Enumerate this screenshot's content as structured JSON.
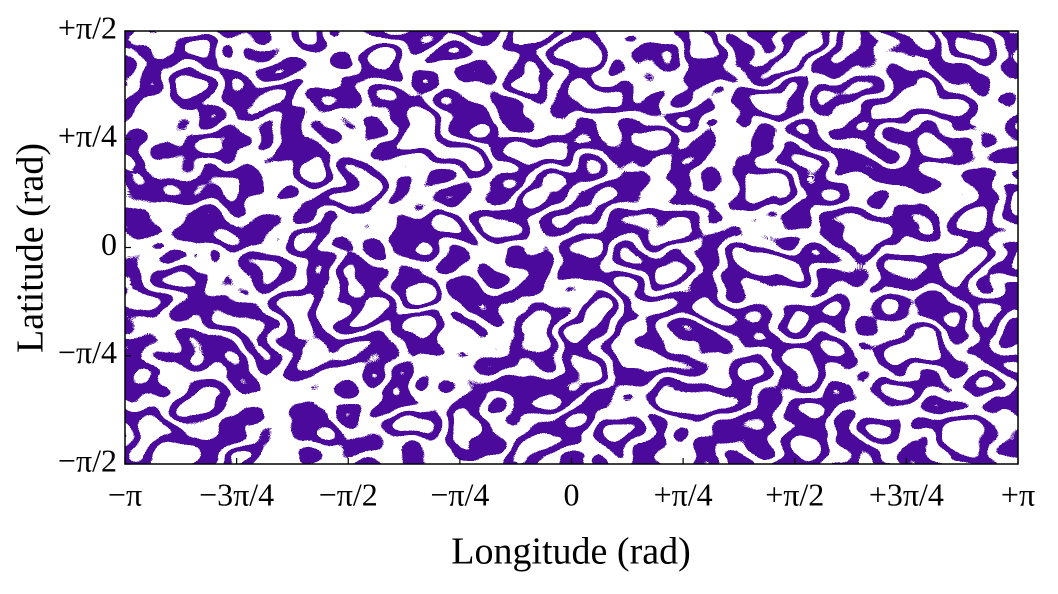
{
  "chart_data": {
    "type": "field",
    "x_label": "Longitude (rad)",
    "y_label": "Latitude (rad)",
    "color": "#4b0a9c",
    "xlim": [
      -3.14159,
      3.14159
    ],
    "ylim": [
      -1.5708,
      1.5708
    ],
    "xticks": [
      {
        "value": -3.14159,
        "label": "−π"
      },
      {
        "value": -2.35619,
        "label": "−3π/4"
      },
      {
        "value": -1.5708,
        "label": "−π/2"
      },
      {
        "value": -0.7854,
        "label": "−π/4"
      },
      0,
      {
        "value": 0.7854,
        "label": "+π/4"
      },
      {
        "value": 1.5708,
        "label": "+π/2"
      },
      {
        "value": 2.35619,
        "label": "+3π/4"
      },
      {
        "value": 3.14159,
        "label": "+π"
      }
    ],
    "yticks": [
      {
        "value": -1.5708,
        "label": "−π/2"
      },
      {
        "value": -0.7854,
        "label": "−π/4"
      },
      0,
      {
        "value": 0.7854,
        "label": "+π/4"
      },
      {
        "value": 1.5708,
        "label": "+π/2"
      }
    ]
  }
}
